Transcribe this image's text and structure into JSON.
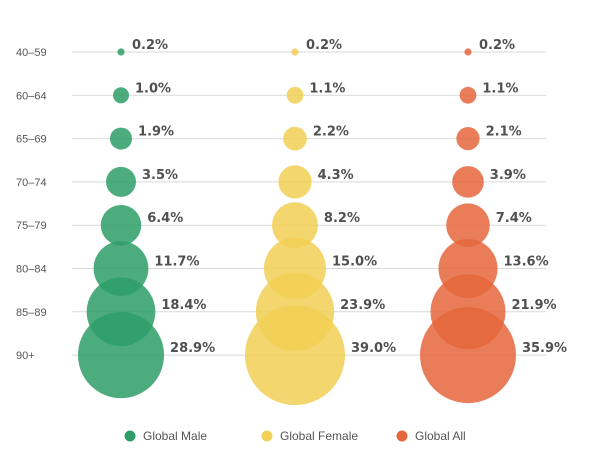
{
  "chart_data": {
    "type": "bubble",
    "categories": [
      "40–59",
      "60–64",
      "65–69",
      "70–74",
      "75–79",
      "80–84",
      "85–89",
      "90+"
    ],
    "series": [
      {
        "name": "Global Male",
        "color": "#2E9E66",
        "values": [
          0.2,
          1.0,
          1.9,
          3.5,
          6.4,
          11.7,
          18.4,
          28.9
        ],
        "labels": [
          "0.2%",
          "1.0%",
          "1.9%",
          "3.5%",
          "6.4%",
          "11.7%",
          "18.4%",
          "28.9%"
        ]
      },
      {
        "name": "Global Female",
        "color": "#F2CF55",
        "values": [
          0.2,
          1.1,
          2.2,
          4.3,
          8.2,
          15.0,
          23.9,
          39.0
        ],
        "labels": [
          "0.2%",
          "1.1%",
          "2.2%",
          "4.3%",
          "8.2%",
          "15.0%",
          "23.9%",
          "39.0%"
        ]
      },
      {
        "name": "Global All",
        "color": "#E5663C",
        "values": [
          0.2,
          1.1,
          2.1,
          3.9,
          7.4,
          13.6,
          21.9,
          35.9
        ],
        "labels": [
          "0.2%",
          "1.1%",
          "2.1%",
          "3.9%",
          "7.4%",
          "13.6%",
          "21.9%",
          "35.9%"
        ]
      }
    ],
    "grid": true,
    "legend_position": "bottom"
  }
}
